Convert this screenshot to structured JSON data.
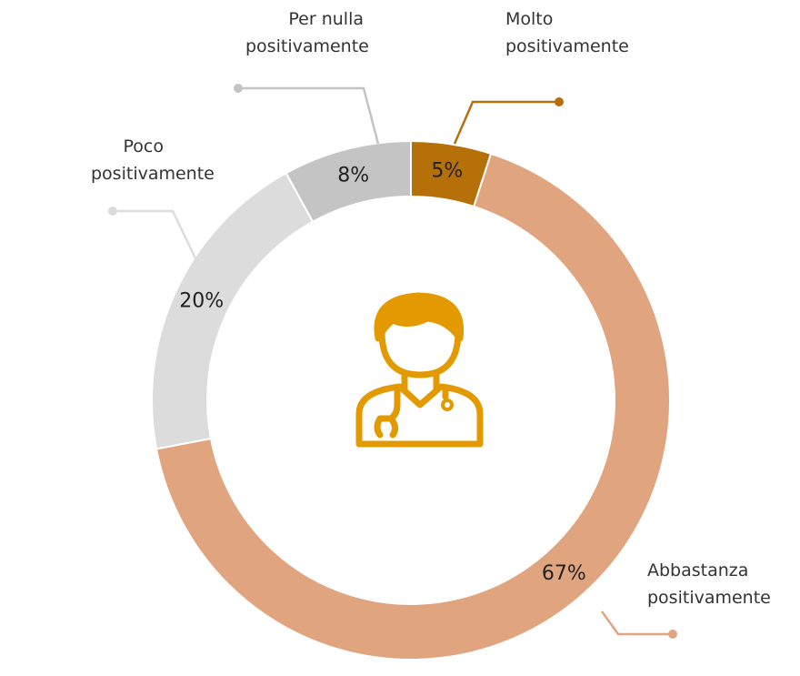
{
  "chart_data": {
    "type": "donut",
    "categories": [
      "Molto positivamente",
      "Abbastanza positivamente",
      "Poco positivamente",
      "Per nulla positivamente"
    ],
    "values": [
      5,
      67,
      20,
      8
    ],
    "value_labels": [
      "5%",
      "67%",
      "20%",
      "8%"
    ],
    "colors": [
      "#b5700a",
      "#e0a47f",
      "#dcdcdc",
      "#c4c4c4"
    ]
  }
}
